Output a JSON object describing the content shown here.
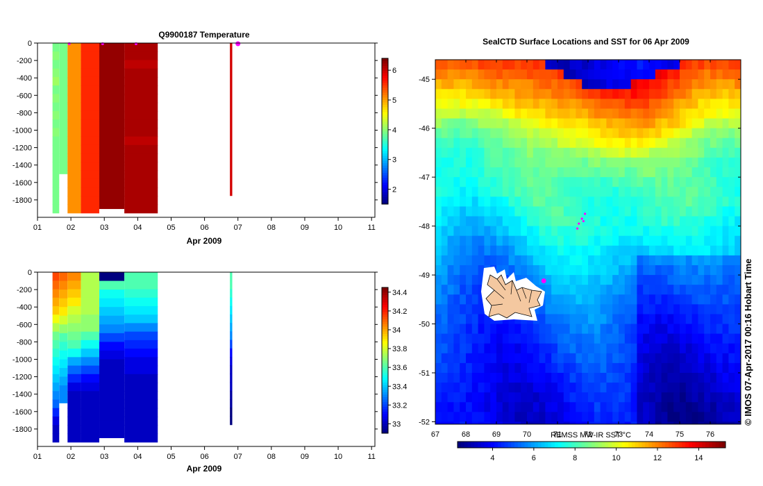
{
  "colors": {
    "jet": [
      "#00007f",
      "#0000ff",
      "#0080ff",
      "#00ffff",
      "#80ff80",
      "#ffff00",
      "#ff8000",
      "#ff0000",
      "#7f0000"
    ],
    "marker": "#ff00ff",
    "island": "#f4c8a0"
  },
  "chart_data": [
    {
      "id": "temperature",
      "type": "heatmap",
      "title": "Q9900187  Temperature",
      "xlabel": "Apr 2009",
      "xticks": [
        "01",
        "02",
        "03",
        "04",
        "05",
        "06",
        "07",
        "08",
        "09",
        "10",
        "11"
      ],
      "xlim": [
        1,
        11.1
      ],
      "yticks": [
        "0",
        "-200",
        "-400",
        "-600",
        "-800",
        "-1000",
        "-1200",
        "-1400",
        "-1600",
        "-1800"
      ],
      "ylim": [
        -2000,
        0
      ],
      "colorbar": {
        "ticks": [
          "2",
          "3",
          "4",
          "5",
          "6"
        ],
        "min": 1.5,
        "max": 6.4
      },
      "profiles": [
        {
          "x0": 1.45,
          "x1": 1.65,
          "depth": -1950,
          "values": [
            3.9,
            4.0,
            3.9,
            4.0,
            4.1,
            3.9,
            4.0,
            3.9,
            4.0,
            3.9,
            4.0,
            3.9,
            3.9,
            3.9,
            3.9,
            3.9,
            3.9,
            3.9,
            3.9,
            3.9
          ]
        },
        {
          "x0": 1.65,
          "x1": 1.9,
          "depth": -1500,
          "values": [
            3.9,
            3.9,
            3.9,
            3.9,
            3.9,
            3.9,
            3.9,
            3.9,
            3.9,
            3.9,
            3.9,
            3.9,
            3.9,
            3.9,
            3.9
          ]
        },
        {
          "x0": 1.9,
          "x1": 2.3,
          "depth": -1950,
          "values": [
            5.1,
            5.1,
            5.1,
            5.1,
            5.1,
            5.1,
            5.1,
            5.1,
            5.1,
            5.1,
            5.1,
            5.1,
            5.1,
            5.1,
            5.1,
            5.1,
            5.1,
            5.1,
            5.1,
            5.1
          ]
        },
        {
          "x0": 2.3,
          "x1": 2.85,
          "depth": -1950,
          "values": [
            5.6,
            5.6,
            5.6,
            5.6,
            5.6,
            5.6,
            5.6,
            5.6,
            5.6,
            5.6,
            5.6,
            5.6,
            5.6,
            5.6,
            5.6,
            5.6,
            5.6,
            5.6,
            5.6,
            5.6
          ]
        },
        {
          "x0": 2.85,
          "x1": 3.6,
          "depth": -1900,
          "values": [
            6.3,
            6.3,
            6.3,
            6.3,
            6.3,
            6.3,
            6.3,
            6.3,
            6.3,
            6.3,
            6.3,
            6.3,
            6.3,
            6.3,
            6.3,
            6.3,
            6.3,
            6.3,
            6.3
          ]
        },
        {
          "x0": 3.6,
          "x1": 4.6,
          "depth": -1950,
          "values": [
            6.2,
            6.2,
            6.1,
            6.2,
            6.2,
            6.2,
            6.2,
            6.2,
            6.2,
            6.2,
            6.2,
            6.1,
            6.2,
            6.2,
            6.2,
            6.2,
            6.2,
            6.2,
            6.2,
            6.2
          ]
        },
        {
          "x0": 6.76,
          "x1": 6.83,
          "depth": -1750,
          "values": [
            6.0
          ]
        }
      ],
      "markers": [
        1.95,
        2.95,
        3.95,
        7.0
      ]
    },
    {
      "id": "salinity",
      "type": "heatmap",
      "title": "",
      "xlabel": "Apr 2009",
      "xticks": [
        "01",
        "02",
        "03",
        "04",
        "05",
        "06",
        "07",
        "08",
        "09",
        "10",
        "11"
      ],
      "xlim": [
        1,
        11.1
      ],
      "yticks": [
        "0",
        "-200",
        "-400",
        "-600",
        "-800",
        "-1000",
        "-1200",
        "-1400",
        "-1600",
        "-1800"
      ],
      "ylim": [
        -2000,
        0
      ],
      "colorbar": {
        "ticks": [
          "33",
          "33.2",
          "33.4",
          "33.6",
          "33.8",
          "34",
          "34.2",
          "34.4"
        ],
        "min": 32.9,
        "max": 34.45
      },
      "profiles": [
        {
          "x0": 1.45,
          "x1": 1.65,
          "depth": -1950,
          "values": [
            34.15,
            34.1,
            34.05,
            34.0,
            33.95,
            33.85,
            33.75,
            33.65,
            33.6,
            33.55,
            33.5,
            33.45,
            33.4,
            33.35,
            33.3,
            33.25,
            33.15,
            33.05,
            33.0,
            33.0
          ]
        },
        {
          "x0": 1.65,
          "x1": 1.9,
          "depth": -1500,
          "values": [
            34.1,
            34.05,
            34.0,
            33.95,
            33.9,
            33.8,
            33.7,
            33.6,
            33.55,
            33.5,
            33.45,
            33.4,
            33.35,
            33.3,
            33.3
          ]
        },
        {
          "x0": 1.9,
          "x1": 2.3,
          "depth": -1950,
          "values": [
            34.05,
            34.0,
            33.95,
            33.9,
            33.8,
            33.75,
            33.7,
            33.65,
            33.6,
            33.5,
            33.35,
            33.25,
            33.15,
            33.05,
            33.0,
            33.0,
            33.0,
            33.0,
            33.0,
            33.0
          ]
        },
        {
          "x0": 2.3,
          "x1": 2.85,
          "depth": -1950,
          "values": [
            33.75,
            33.75,
            33.75,
            33.75,
            33.75,
            33.7,
            33.7,
            33.6,
            33.5,
            33.4,
            33.3,
            33.2,
            33.1,
            33.05,
            33.0,
            33.0,
            33.0,
            33.0,
            33.0,
            33.0
          ]
        },
        {
          "x0": 2.85,
          "x1": 3.6,
          "depth": -1900,
          "values": [
            32.9,
            33.6,
            33.5,
            33.45,
            33.4,
            33.35,
            33.3,
            33.2,
            33.1,
            33.05,
            33.0,
            33.0,
            33.0,
            33.0,
            33.0,
            33.0,
            33.0,
            33.0,
            33.0
          ]
        },
        {
          "x0": 3.6,
          "x1": 4.6,
          "depth": -1950,
          "values": [
            33.6,
            33.6,
            33.55,
            33.5,
            33.45,
            33.4,
            33.3,
            33.2,
            33.15,
            33.1,
            33.05,
            33.05,
            33.0,
            33.0,
            33.0,
            33.0,
            33.0,
            33.0,
            33.0,
            33.0
          ]
        },
        {
          "x0": 6.76,
          "x1": 6.83,
          "depth": -1750,
          "values": [
            33.6,
            33.6,
            33.55,
            33.5,
            33.45,
            33.4,
            33.35,
            33.3,
            33.2,
            33.1,
            33.05,
            33.0,
            33.0,
            33.0,
            32.95,
            32.95,
            32.9,
            32.9
          ]
        }
      ],
      "markers": []
    },
    {
      "id": "sst_map",
      "type": "heatmap",
      "title": "SealCTD Surface Locations and SST for 06 Apr 2009",
      "xticks": [
        "67",
        "68",
        "69",
        "70",
        "71",
        "72",
        "73",
        "74",
        "75",
        "76"
      ],
      "xlim": [
        67,
        77
      ],
      "yticks": [
        "-45",
        "-46",
        "-47",
        "-48",
        "-49",
        "-50",
        "-51",
        "-52"
      ],
      "ylim": [
        -52.05,
        -44.6
      ],
      "colorbar_label": "REMSS MW-IR SST °C",
      "colorbar": {
        "ticks": [
          "4",
          "6",
          "8",
          "10",
          "12",
          "14"
        ],
        "min": 2.3,
        "max": 15.3
      },
      "sst_control": [
        [
          -44.6,
          13.5
        ],
        [
          -45.2,
          12.0
        ],
        [
          -45.8,
          10.5
        ],
        [
          -46.2,
          9.0
        ],
        [
          -46.8,
          8.0
        ],
        [
          -47.5,
          7.8
        ],
        [
          -48.2,
          6.8
        ],
        [
          -49.0,
          5.8
        ],
        [
          -49.8,
          5.0
        ],
        [
          -50.5,
          4.5
        ],
        [
          -51.3,
          4.0
        ],
        [
          -52.05,
          3.6
        ]
      ],
      "seal_locations": [
        [
          71.8,
          -47.85
        ],
        [
          71.9,
          -47.75
        ],
        [
          71.7,
          -47.95
        ],
        [
          71.65,
          -48.05
        ],
        [
          71.85,
          -47.9
        ]
      ],
      "highlight": [
        70.55,
        -49.12
      ],
      "credit": "© IMOS 07-Apr-2017 00:16 Hobart Time"
    }
  ]
}
